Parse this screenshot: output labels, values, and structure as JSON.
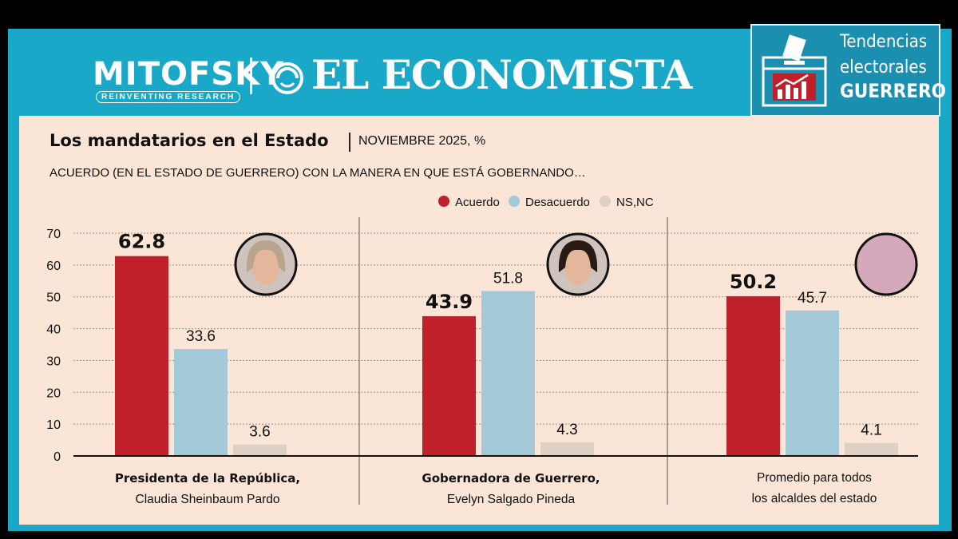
{
  "header": {
    "brand_left": "MITOFSKY",
    "brand_left_tagline": "REINVENTING RESEARCH",
    "brand_right": "EL ECONOMISTA",
    "badge": {
      "line1": "Tendencias",
      "line2": "electorales",
      "line3": "GUERRERO"
    }
  },
  "title": "Los mandatarios en el Estado",
  "date": "NOVIEMBRE 2025, %",
  "question": "ACUERDO (EN EL ESTADO DE GUERRERO) CON LA MANERA EN QUE ESTÁ GOBERNANDO…",
  "colors": {
    "acuerdo": "#c0202a",
    "desacuerdo": "#a3c9d9",
    "nsnc": "#ded0c2",
    "teal": "#1aa8c9",
    "panel": "#fbe5d7"
  },
  "chart_data": {
    "type": "bar",
    "title": "Los mandatarios en el Estado",
    "ylim": [
      0,
      70
    ],
    "yticks": [
      0,
      10,
      20,
      30,
      40,
      50,
      60,
      70
    ],
    "grid": true,
    "legend": "top-center",
    "series_names": [
      "Acuerdo",
      "Desacuerdo",
      "NS,NC"
    ],
    "groups": [
      {
        "label_bold": "Presidenta de la República,",
        "label_normal": "Claudia Sheinbaum Pardo",
        "values": [
          62.8,
          33.6,
          3.6
        ],
        "labels": [
          "62.8",
          "33.6",
          "3.6"
        ]
      },
      {
        "label_bold": "Gobernadora de Guerrero,",
        "label_normal": "Evelyn Salgado Pineda",
        "values": [
          43.9,
          51.8,
          4.3
        ],
        "labels": [
          "43.9",
          "51.8",
          "4.3"
        ]
      },
      {
        "label_bold": "",
        "label_normal": "Promedio para todos",
        "label_normal2": "los alcaldes del estado",
        "values": [
          50.2,
          45.7,
          4.1
        ],
        "labels": [
          "50.2",
          "45.7",
          "4.1"
        ]
      }
    ]
  }
}
